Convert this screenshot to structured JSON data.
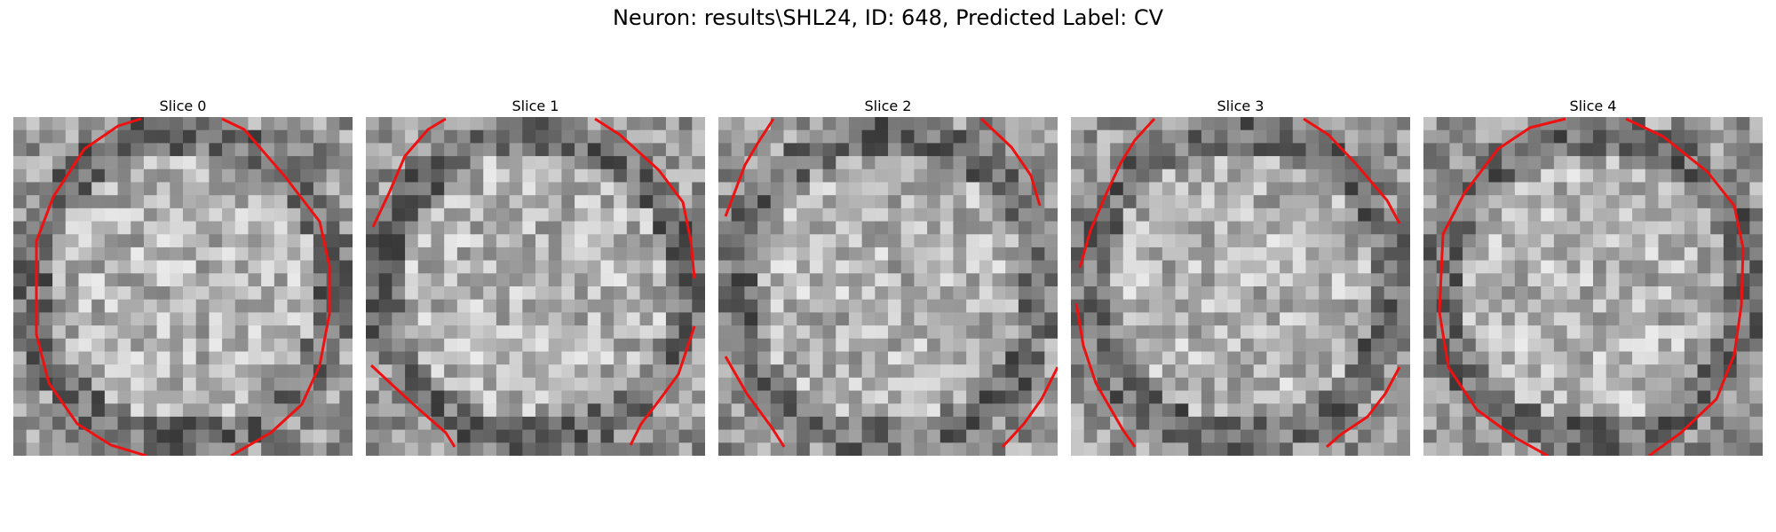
{
  "figure": {
    "title": "Neuron: results\\SHL24, ID: 648, Predicted Label: CV"
  },
  "slices": [
    {
      "label": "Slice 0"
    },
    {
      "label": "Slice 1"
    },
    {
      "label": "Slice 2"
    },
    {
      "label": "Slice 3"
    },
    {
      "label": "Slice 4"
    }
  ],
  "colors": {
    "contour": "#ee1111",
    "background": "#ffffff"
  }
}
